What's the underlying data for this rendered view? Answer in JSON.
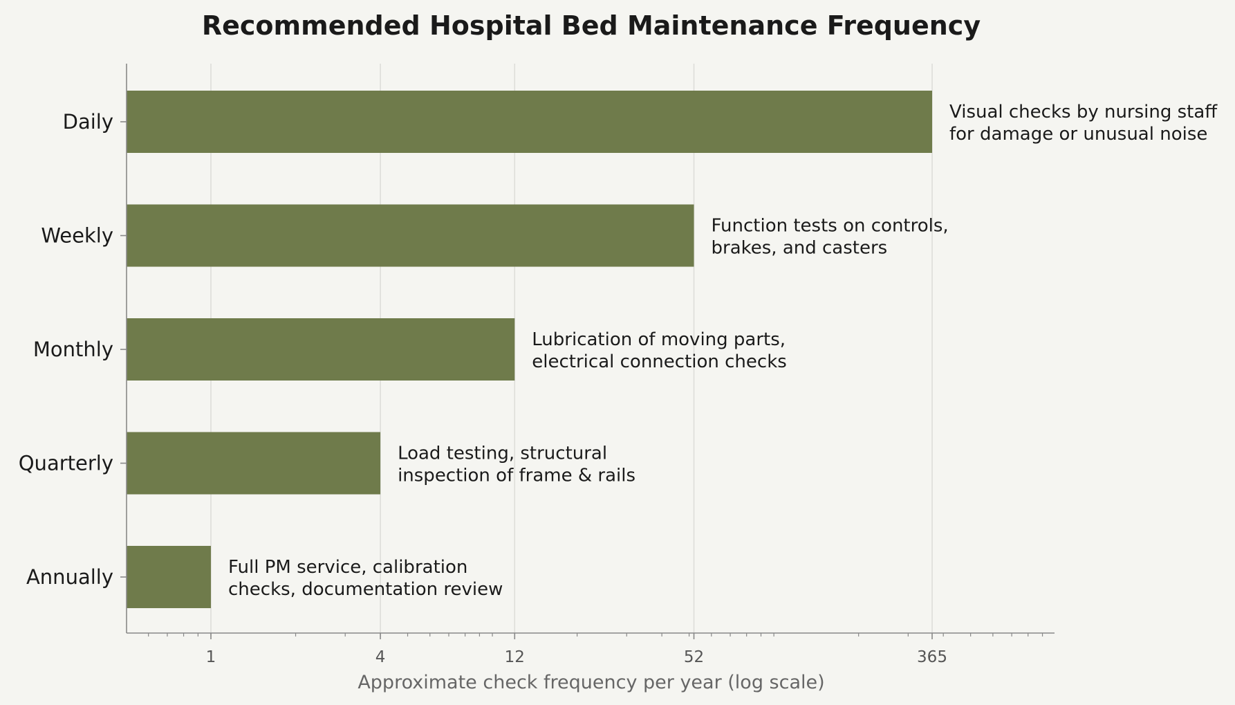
{
  "chart_data": {
    "type": "bar",
    "orientation": "horizontal",
    "title": "Recommended Hospital Bed Maintenance Frequency",
    "xlabel": "Approximate check frequency per year (log scale)",
    "ylabel": "",
    "x_scale": "log",
    "xlim": [
      0.37,
      1000
    ],
    "x_ticks": [
      1,
      4,
      12,
      52,
      365
    ],
    "x_tick_labels": [
      "1",
      "4",
      "12",
      "52",
      "365"
    ],
    "grid": "vertical at major ticks",
    "bar_color": "#6f7b4b",
    "categories": [
      "Daily",
      "Weekly",
      "Monthly",
      "Quarterly",
      "Annually"
    ],
    "values": [
      365,
      52,
      12,
      4,
      1
    ],
    "annotations": [
      [
        "Visual checks by nursing staff",
        "for damage or unusual noise"
      ],
      [
        "Function tests on controls,",
        "brakes, and casters"
      ],
      [
        "Lubrication of moving parts,",
        "electrical connection checks"
      ],
      [
        "Load testing, structural",
        "inspection of frame & rails"
      ],
      [
        "Full PM service, calibration",
        "checks, documentation review"
      ]
    ]
  },
  "colors": {
    "background": "#f5f5f1",
    "bar": "#6f7b4b",
    "grid": "#dcdcd8",
    "axis": "#888888",
    "text": "#1a1a1a",
    "tick_text": "#555555"
  }
}
